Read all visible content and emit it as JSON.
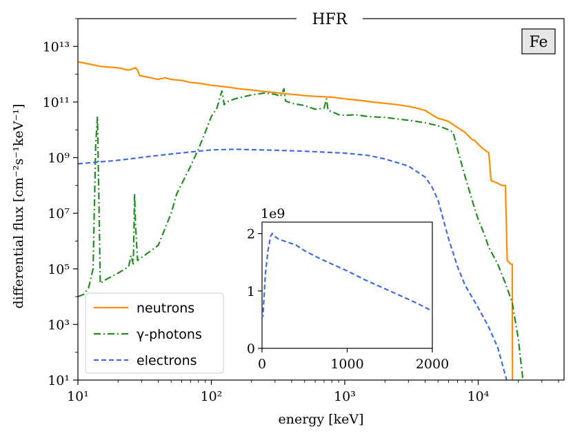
{
  "chart_data": [
    {
      "type": "line",
      "title": "HFR",
      "annotation": "Fe",
      "xlabel": "energy [keV]",
      "ylabel": "differential flux [cm⁻²s⁻¹keV⁻¹]",
      "xscale": "log",
      "yscale": "log",
      "xlim": [
        10,
        44000
      ],
      "ylim": [
        10,
        100000000000000.0
      ],
      "xticks": [
        {
          "value": 10,
          "label": "10¹"
        },
        {
          "value": 100,
          "label": "10²"
        },
        {
          "value": 1000,
          "label": "10³"
        },
        {
          "value": 10000,
          "label": "10⁴"
        }
      ],
      "yticks": [
        {
          "value": 10,
          "label": "10¹"
        },
        {
          "value": 1000,
          "label": "10³"
        },
        {
          "value": 100000,
          "label": "10⁵"
        },
        {
          "value": 10000000,
          "label": "10⁷"
        },
        {
          "value": 1000000000,
          "label": "10⁹"
        },
        {
          "value": 100000000000,
          "label": "10¹¹"
        },
        {
          "value": 10000000000000,
          "label": "10¹³"
        }
      ],
      "legend_position": "lower-left",
      "grid": false,
      "series": [
        {
          "name": "neutrons",
          "color": "#ff8c00",
          "style": "solid",
          "points": [
            [
              10,
              2800000000000.0
            ],
            [
              15,
              1900000000000.0
            ],
            [
              20,
              1700000000000.0
            ],
            [
              24,
              1400000000000.0
            ],
            [
              26,
              1600000000000.0
            ],
            [
              27,
              1700000000000.0
            ],
            [
              28,
              1400000000000.0
            ],
            [
              29,
              900000000000.0
            ],
            [
              35,
              750000000000.0
            ],
            [
              40,
              650000000000.0
            ],
            [
              45,
              750000000000.0
            ],
            [
              50,
              650000000000.0
            ],
            [
              60,
              600000000000.0
            ],
            [
              70,
              500000000000.0
            ],
            [
              80,
              480000000000.0
            ],
            [
              100,
              400000000000.0
            ],
            [
              130,
              350000000000.0
            ],
            [
              160,
              300000000000.0
            ],
            [
              200,
              270000000000.0
            ],
            [
              250,
              240000000000.0
            ],
            [
              300,
              220000000000.0
            ],
            [
              350,
              200000000000.0
            ],
            [
              400,
              190000000000.0
            ],
            [
              500,
              170000000000.0
            ],
            [
              600,
              160000000000.0
            ],
            [
              800,
              150000000000.0
            ],
            [
              1000,
              130000000000.0
            ],
            [
              1300,
              115000000000.0
            ],
            [
              1600,
              100000000000.0
            ],
            [
              2000,
              90000000000.0
            ],
            [
              2500,
              80000000000.0
            ],
            [
              3000,
              70000000000.0
            ],
            [
              3500,
              60000000000.0
            ],
            [
              4000,
              50000000000.0
            ],
            [
              4500,
              35000000000.0
            ],
            [
              5000,
              26000000000.0
            ],
            [
              5500,
              23000000000.0
            ],
            [
              6000,
              20000000000.0
            ],
            [
              7000,
              12000000000.0
            ],
            [
              8000,
              8000000000.0
            ],
            [
              9000,
              4500000000.0
            ],
            [
              9500,
              4000000000.0
            ],
            [
              10000,
              3000000000.0
            ],
            [
              11000,
              2000000000.0
            ],
            [
              12000,
              1500000000.0
            ],
            [
              12500,
              150000000.0
            ],
            [
              13000,
              140000000.0
            ],
            [
              14000,
              120000000.0
            ],
            [
              15000,
              100000000.0
            ],
            [
              16000,
              100000000.0
            ],
            [
              16500,
              200000.0
            ],
            [
              17500,
              150000.0
            ],
            [
              18000,
              150000.0
            ],
            [
              18100,
              0.5
            ]
          ]
        },
        {
          "name": "γ-photons",
          "color": "#228b22",
          "style": "dash-dot",
          "points": [
            [
              10,
              10000.0
            ],
            [
              11,
              12000.0
            ],
            [
              12,
              20000.0
            ],
            [
              13,
              100000.0
            ],
            [
              13.6,
              3000000000.0
            ],
            [
              14,
              30000000000.0
            ],
            [
              14.3,
              100000000.0
            ],
            [
              14.7,
              30000.0
            ],
            [
              16,
              40000.0
            ],
            [
              20,
              70000.0
            ],
            [
              24,
              120000.0
            ],
            [
              25,
              300000.0
            ],
            [
              26,
              150000.0
            ],
            [
              26.6,
              50000000.0
            ],
            [
              27,
              4000000.0
            ],
            [
              28,
              200000.0
            ],
            [
              40,
              700000.0
            ],
            [
              50,
              10000000.0
            ],
            [
              55,
              50000000.0
            ],
            [
              70,
              500000000.0
            ],
            [
              80,
              2000000000.0
            ],
            [
              90,
              8000000000.0
            ],
            [
              100,
              30000000000.0
            ],
            [
              110,
              60000000000.0
            ],
            [
              120,
              250000000000.0
            ],
            [
              125,
              80000000000.0
            ],
            [
              130,
              100000000000.0
            ],
            [
              150,
              130000000000.0
            ],
            [
              200,
              180000000000.0
            ],
            [
              250,
              210000000000.0
            ],
            [
              300,
              190000000000.0
            ],
            [
              330,
              160000000000.0
            ],
            [
              350,
              300000000000.0
            ],
            [
              360,
              110000000000.0
            ],
            [
              400,
              90000000000.0
            ],
            [
              500,
              75000000000.0
            ],
            [
              600,
              55000000000.0
            ],
            [
              700,
              60000000000.0
            ],
            [
              730,
              130000000000.0
            ],
            [
              750,
              50000000000.0
            ],
            [
              800,
              45000000000.0
            ],
            [
              900,
              35000000000.0
            ],
            [
              1000,
              33000000000.0
            ],
            [
              1200,
              35000000000.0
            ],
            [
              1500,
              30000000000.0
            ],
            [
              2000,
              28000000000.0
            ],
            [
              3000,
              22000000000.0
            ],
            [
              4000,
              18000000000.0
            ],
            [
              5000,
              14000000000.0
            ],
            [
              6000,
              10000000000.0
            ],
            [
              6500,
              8000000000.0
            ],
            [
              7000,
              2000000000.0
            ],
            [
              8000,
              200000000.0
            ],
            [
              9000,
              30000000.0
            ],
            [
              10000,
              6000000.0
            ],
            [
              11000,
              2000000.0
            ],
            [
              12000,
              600000.0
            ],
            [
              14000,
              150000.0
            ],
            [
              16000,
              30000.0
            ],
            [
              18000,
              6000.0
            ],
            [
              20000,
              300
            ],
            [
              22000,
              5
            ]
          ]
        },
        {
          "name": "electrons",
          "color": "#4169e1",
          "style": "dashed",
          "points": [
            [
              10,
              600000000.0
            ],
            [
              20,
              800000000.0
            ],
            [
              40,
              1200000000.0
            ],
            [
              70,
              1600000000.0
            ],
            [
              100,
              1900000000.0
            ],
            [
              150,
              2000000000.0
            ],
            [
              300,
              1850000000.0
            ],
            [
              500,
              1700000000.0
            ],
            [
              1000,
              1450000000.0
            ],
            [
              1500,
              1200000000.0
            ],
            [
              2000,
              900000000.0
            ],
            [
              3000,
              500000000.0
            ],
            [
              4000,
              200000000.0
            ],
            [
              4500,
              90000000.0
            ],
            [
              5000,
              30000000.0
            ],
            [
              6000,
              1200000.0
            ],
            [
              7000,
              120000.0
            ],
            [
              8000,
              25000.0
            ],
            [
              10000,
              4000.0
            ],
            [
              12000,
              800
            ],
            [
              14000,
              150
            ],
            [
              17000,
              5
            ]
          ]
        }
      ]
    },
    {
      "type": "line",
      "title": "",
      "xlim": [
        0,
        2000
      ],
      "ylim": [
        0,
        2.2
      ],
      "xticks": [
        0,
        1000,
        2000
      ],
      "yticks": [
        0,
        1,
        2
      ],
      "y_offset_label": "1e9",
      "series": [
        {
          "name": "electrons",
          "color": "#4169e1",
          "style": "dashed",
          "points": [
            [
              0,
              0.6
            ],
            [
              10,
              0.55
            ],
            [
              20,
              0.8
            ],
            [
              40,
              1.3
            ],
            [
              70,
              1.7
            ],
            [
              100,
              1.95
            ],
            [
              120,
              2.0
            ],
            [
              150,
              1.95
            ],
            [
              200,
              1.9
            ],
            [
              300,
              1.85
            ],
            [
              400,
              1.8
            ],
            [
              500,
              1.7
            ],
            [
              700,
              1.55
            ],
            [
              1000,
              1.35
            ],
            [
              1200,
              1.2
            ],
            [
              1500,
              1.0
            ],
            [
              1800,
              0.8
            ],
            [
              2000,
              0.65
            ]
          ]
        }
      ]
    }
  ]
}
